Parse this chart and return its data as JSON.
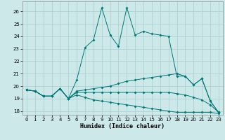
{
  "xlabel": "Humidex (Indice chaleur)",
  "bg_color": "#cce8e8",
  "grid_color": "#aacece",
  "line_color": "#007878",
  "xlim": [
    -0.5,
    23.5
  ],
  "ylim": [
    17.7,
    26.8
  ],
  "yticks": [
    18,
    19,
    20,
    21,
    22,
    23,
    24,
    25,
    26
  ],
  "xticks": [
    0,
    1,
    2,
    3,
    4,
    5,
    6,
    7,
    8,
    9,
    10,
    11,
    12,
    13,
    14,
    15,
    16,
    17,
    18,
    19,
    20,
    21,
    22,
    23
  ],
  "line1_x": [
    0,
    1,
    2,
    3,
    4,
    5,
    6,
    7,
    8,
    9,
    10,
    11,
    12,
    13,
    14,
    15,
    16,
    17,
    18,
    19,
    20,
    21,
    22,
    23
  ],
  "line1_y": [
    19.7,
    19.6,
    19.2,
    19.2,
    19.8,
    19.0,
    20.5,
    23.1,
    23.7,
    26.3,
    24.1,
    23.2,
    26.3,
    24.1,
    24.4,
    24.2,
    24.1,
    24.0,
    20.8,
    20.8,
    20.1,
    20.6,
    18.8,
    17.9
  ],
  "line2_x": [
    0,
    1,
    2,
    3,
    4,
    5,
    6,
    7,
    8,
    9,
    10,
    11,
    12,
    13,
    14,
    15,
    16,
    17,
    18,
    19,
    20,
    21,
    22,
    23
  ],
  "line2_y": [
    19.7,
    19.6,
    19.2,
    19.2,
    19.8,
    19.0,
    19.6,
    19.7,
    19.8,
    19.9,
    20.0,
    20.2,
    20.4,
    20.5,
    20.6,
    20.7,
    20.8,
    20.9,
    21.0,
    20.8,
    20.1,
    20.6,
    18.8,
    17.9
  ],
  "line3_x": [
    0,
    1,
    2,
    3,
    4,
    5,
    6,
    7,
    8,
    9,
    10,
    11,
    12,
    13,
    14,
    15,
    16,
    17,
    18,
    19,
    20,
    21,
    22,
    23
  ],
  "line3_y": [
    19.7,
    19.6,
    19.2,
    19.2,
    19.8,
    19.0,
    19.5,
    19.5,
    19.5,
    19.5,
    19.5,
    19.5,
    19.5,
    19.5,
    19.5,
    19.5,
    19.5,
    19.5,
    19.4,
    19.3,
    19.1,
    18.9,
    18.5,
    17.9
  ],
  "line4_x": [
    0,
    1,
    2,
    3,
    4,
    5,
    6,
    7,
    8,
    9,
    10,
    11,
    12,
    13,
    14,
    15,
    16,
    17,
    18,
    19,
    20,
    21,
    22,
    23
  ],
  "line4_y": [
    19.7,
    19.6,
    19.2,
    19.2,
    19.8,
    19.0,
    19.3,
    19.1,
    18.9,
    18.8,
    18.7,
    18.6,
    18.5,
    18.4,
    18.3,
    18.2,
    18.1,
    18.0,
    17.9,
    17.9,
    17.9,
    17.9,
    17.9,
    17.8
  ]
}
